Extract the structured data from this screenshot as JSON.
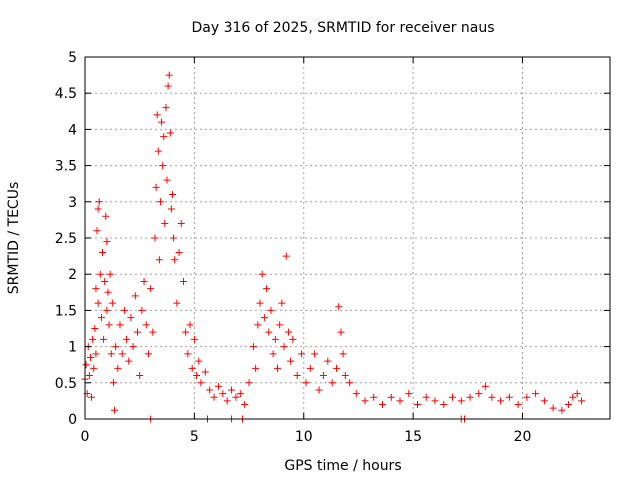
{
  "chart_data": {
    "type": "scatter",
    "title": "Day 316 of 2025, SRMTID for receiver naus",
    "xlabel": "GPS time / hours",
    "ylabel": "SRMTID / TECUs",
    "xlim": [
      0,
      24
    ],
    "ylim": [
      0,
      5
    ],
    "xticks": [
      0,
      5,
      10,
      15,
      20
    ],
    "xtick_labels": [
      "0",
      "5",
      "10",
      "15",
      "20"
    ],
    "yticks": [
      0,
      0.5,
      1,
      1.5,
      2,
      2.5,
      3,
      3.5,
      4,
      4.5,
      5
    ],
    "ytick_labels": [
      "0",
      "0.5",
      "1",
      "1.5",
      "2",
      "2.5",
      "3",
      "3.5",
      "4",
      "4.5",
      "5"
    ],
    "grid": true,
    "marker": "+",
    "series_color": "#ff0000",
    "series": [
      {
        "name": "SRMTID",
        "points": [
          [
            0.0,
            0.55
          ],
          [
            0.05,
            0.75
          ],
          [
            0.1,
            0.35
          ],
          [
            0.15,
            1.0
          ],
          [
            0.2,
            0.6
          ],
          [
            0.25,
            0.85
          ],
          [
            0.3,
            0.3
          ],
          [
            0.35,
            1.1
          ],
          [
            0.4,
            0.7
          ],
          [
            0.45,
            1.25
          ],
          [
            0.5,
            0.9
          ],
          [
            0.5,
            1.8
          ],
          [
            0.55,
            2.6
          ],
          [
            0.6,
            1.6
          ],
          [
            0.6,
            2.9
          ],
          [
            0.65,
            3.0
          ],
          [
            0.7,
            2.0
          ],
          [
            0.75,
            1.4
          ],
          [
            0.8,
            2.3
          ],
          [
            0.85,
            1.1
          ],
          [
            0.9,
            1.9
          ],
          [
            0.95,
            2.8
          ],
          [
            1.0,
            1.5
          ],
          [
            1.0,
            2.45
          ],
          [
            1.05,
            1.75
          ],
          [
            1.1,
            1.3
          ],
          [
            1.15,
            2.0
          ],
          [
            1.2,
            0.9
          ],
          [
            1.25,
            1.6
          ],
          [
            1.3,
            0.5
          ],
          [
            1.35,
            0.12
          ],
          [
            1.4,
            1.0
          ],
          [
            1.5,
            0.7
          ],
          [
            1.6,
            1.3
          ],
          [
            1.7,
            0.9
          ],
          [
            1.8,
            1.5
          ],
          [
            1.9,
            1.1
          ],
          [
            2.0,
            0.8
          ],
          [
            2.1,
            1.4
          ],
          [
            2.2,
            1.0
          ],
          [
            2.3,
            1.7
          ],
          [
            2.4,
            1.2
          ],
          [
            2.5,
            0.6
          ],
          [
            2.6,
            1.5
          ],
          [
            2.7,
            1.9
          ],
          [
            2.8,
            1.3
          ],
          [
            2.9,
            0.9
          ],
          [
            3.0,
            1.8
          ],
          [
            3.1,
            1.2
          ],
          [
            3.2,
            2.5
          ],
          [
            3.25,
            3.2
          ],
          [
            3.3,
            4.2
          ],
          [
            3.35,
            3.7
          ],
          [
            3.4,
            2.2
          ],
          [
            3.45,
            3.0
          ],
          [
            3.5,
            4.1
          ],
          [
            3.55,
            3.5
          ],
          [
            3.6,
            3.9
          ],
          [
            3.65,
            2.7
          ],
          [
            3.7,
            4.3
          ],
          [
            3.75,
            3.3
          ],
          [
            3.8,
            4.6
          ],
          [
            3.85,
            4.75
          ],
          [
            3.9,
            3.95
          ],
          [
            3.95,
            2.9
          ],
          [
            4.0,
            3.1
          ],
          [
            4.05,
            2.5
          ],
          [
            4.1,
            2.2
          ],
          [
            4.2,
            1.6
          ],
          [
            4.3,
            2.3
          ],
          [
            4.4,
            2.7
          ],
          [
            4.5,
            1.9
          ],
          [
            4.6,
            1.2
          ],
          [
            4.7,
            0.9
          ],
          [
            4.8,
            1.3
          ],
          [
            4.9,
            0.7
          ],
          [
            5.0,
            1.1
          ],
          [
            5.1,
            0.6
          ],
          [
            5.2,
            0.8
          ],
          [
            5.3,
            0.5
          ],
          [
            5.5,
            0.65
          ],
          [
            5.7,
            0.4
          ],
          [
            5.9,
            0.3
          ],
          [
            6.1,
            0.45
          ],
          [
            6.3,
            0.35
          ],
          [
            6.5,
            0.25
          ],
          [
            6.7,
            0.4
          ],
          [
            6.9,
            0.3
          ],
          [
            7.1,
            0.35
          ],
          [
            7.3,
            0.2
          ],
          [
            7.5,
            0.5
          ],
          [
            7.7,
            1.0
          ],
          [
            7.8,
            0.7
          ],
          [
            7.9,
            1.3
          ],
          [
            8.0,
            1.6
          ],
          [
            8.1,
            2.0
          ],
          [
            8.2,
            1.4
          ],
          [
            8.3,
            1.8
          ],
          [
            8.4,
            1.2
          ],
          [
            8.5,
            1.5
          ],
          [
            8.6,
            0.9
          ],
          [
            8.7,
            1.1
          ],
          [
            8.8,
            0.7
          ],
          [
            8.9,
            1.3
          ],
          [
            9.0,
            1.6
          ],
          [
            9.1,
            1.0
          ],
          [
            9.2,
            2.25
          ],
          [
            9.3,
            1.2
          ],
          [
            9.4,
            0.8
          ],
          [
            9.5,
            1.1
          ],
          [
            9.7,
            0.6
          ],
          [
            9.9,
            0.9
          ],
          [
            10.1,
            0.5
          ],
          [
            10.3,
            0.7
          ],
          [
            10.5,
            0.9
          ],
          [
            10.7,
            0.4
          ],
          [
            10.9,
            0.6
          ],
          [
            11.1,
            0.8
          ],
          [
            11.3,
            0.5
          ],
          [
            11.5,
            0.7
          ],
          [
            11.6,
            1.55
          ],
          [
            11.7,
            1.2
          ],
          [
            11.8,
            0.9
          ],
          [
            11.9,
            0.6
          ],
          [
            12.1,
            0.5
          ],
          [
            12.4,
            0.35
          ],
          [
            12.8,
            0.25
          ],
          [
            13.2,
            0.3
          ],
          [
            13.6,
            0.2
          ],
          [
            14.0,
            0.3
          ],
          [
            14.4,
            0.25
          ],
          [
            14.8,
            0.35
          ],
          [
            15.2,
            0.2
          ],
          [
            15.6,
            0.3
          ],
          [
            16.0,
            0.25
          ],
          [
            16.4,
            0.2
          ],
          [
            16.8,
            0.3
          ],
          [
            17.2,
            0.25
          ],
          [
            17.6,
            0.3
          ],
          [
            18.0,
            0.35
          ],
          [
            18.3,
            0.45
          ],
          [
            18.6,
            0.3
          ],
          [
            19.0,
            0.25
          ],
          [
            19.4,
            0.3
          ],
          [
            19.8,
            0.2
          ],
          [
            20.2,
            0.3
          ],
          [
            20.6,
            0.35
          ],
          [
            21.0,
            0.25
          ],
          [
            21.4,
            0.15
          ],
          [
            21.8,
            0.12
          ],
          [
            22.1,
            0.2
          ],
          [
            22.3,
            0.3
          ],
          [
            22.5,
            0.35
          ],
          [
            22.7,
            0.25
          ],
          [
            3.0,
            0.0
          ],
          [
            5.6,
            0.0
          ],
          [
            6.7,
            0.0
          ],
          [
            7.2,
            0.0
          ],
          [
            17.2,
            0.0
          ],
          [
            17.35,
            0.0
          ]
        ]
      }
    ]
  }
}
